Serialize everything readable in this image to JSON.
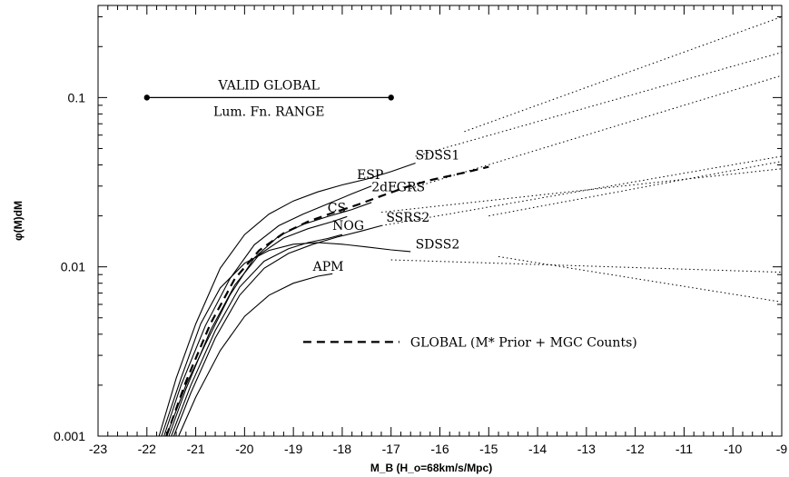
{
  "chart_data": {
    "type": "line",
    "xlabel": "M_B (H_o=68km/s/Mpc)",
    "ylabel": "φ(M)dM",
    "xlim": [
      -23,
      -9
    ],
    "ylim": [
      0.001,
      0.35
    ],
    "yscale": "log",
    "grid": false,
    "x_ticks": [
      "-23",
      "-22",
      "-21",
      "-20",
      "-19",
      "-18",
      "-17",
      "-16",
      "-15",
      "-14",
      "-13",
      "-12",
      "-11",
      "-10",
      "-9"
    ],
    "y_ticks": [
      "0.001",
      "0.01",
      "0.1"
    ],
    "valid_range": {
      "x": [
        -22,
        -17
      ],
      "y": 0.1,
      "label_top": "VALID GLOBAL",
      "label_bottom": "Lum. Fn. RANGE"
    },
    "legend_text": "GLOBAL (M* Prior + MGC Counts)",
    "series": [
      {
        "name": "SDSS1",
        "solid": [
          [
            -21.75,
            0.001
          ],
          [
            -21.4,
            0.0022
          ],
          [
            -21.0,
            0.0046
          ],
          [
            -20.5,
            0.0098
          ],
          [
            -20.0,
            0.0155
          ],
          [
            -19.5,
            0.0205
          ],
          [
            -19.0,
            0.0245
          ],
          [
            -18.5,
            0.0277
          ],
          [
            -18.0,
            0.0305
          ],
          [
            -17.5,
            0.033
          ],
          [
            -17.0,
            0.0365
          ],
          [
            -16.5,
            0.041
          ]
        ],
        "dotted": [
          [
            -15.5,
            0.063
          ],
          [
            -9,
            0.3
          ]
        ],
        "label_at": [
          -16.5,
          0.043
        ]
      },
      {
        "name": "ESP",
        "solid": [
          [
            -21.65,
            0.001
          ],
          [
            -21.3,
            0.002
          ],
          [
            -20.8,
            0.0045
          ],
          [
            -20.3,
            0.0085
          ],
          [
            -19.8,
            0.0135
          ],
          [
            -19.3,
            0.0175
          ],
          [
            -18.8,
            0.0205
          ],
          [
            -18.3,
            0.0235
          ],
          [
            -17.8,
            0.027
          ],
          [
            -17.4,
            0.03
          ]
        ],
        "dotted": [
          [
            -16.5,
            0.045
          ],
          [
            -9,
            0.185
          ]
        ],
        "label_at": [
          -17.7,
          0.033
        ]
      },
      {
        "name": "2dFGRS",
        "solid": [
          [
            -21.6,
            0.001
          ],
          [
            -21.2,
            0.002
          ],
          [
            -20.8,
            0.0035
          ],
          [
            -20.3,
            0.0068
          ],
          [
            -19.8,
            0.0113
          ],
          [
            -19.3,
            0.0152
          ],
          [
            -18.8,
            0.0178
          ],
          [
            -18.3,
            0.0198
          ],
          [
            -17.8,
            0.0218
          ],
          [
            -17.4,
            0.024
          ]
        ],
        "dotted": [
          [
            -16.6,
            0.029
          ],
          [
            -9,
            0.135
          ]
        ],
        "label_at": [
          -17.4,
          0.028
        ]
      },
      {
        "name": "CS",
        "solid": [
          [
            -21.55,
            0.001
          ],
          [
            -21.2,
            0.0019
          ],
          [
            -20.7,
            0.0042
          ],
          [
            -20.2,
            0.0078
          ],
          [
            -19.7,
            0.0118
          ],
          [
            -19.2,
            0.0148
          ],
          [
            -18.7,
            0.0168
          ],
          [
            -18.2,
            0.0185
          ],
          [
            -17.9,
            0.0198
          ]
        ],
        "dotted": [
          [
            -17.2,
            0.021
          ],
          [
            -9,
            0.038
          ]
        ],
        "label_at": [
          -18.3,
          0.021
        ]
      },
      {
        "name": "NOG",
        "solid": [
          [
            -21.5,
            0.001
          ],
          [
            -21.1,
            0.002
          ],
          [
            -20.6,
            0.0042
          ],
          [
            -20.1,
            0.0076
          ],
          [
            -19.6,
            0.0108
          ],
          [
            -19.1,
            0.0128
          ],
          [
            -18.7,
            0.0139
          ],
          [
            -18.3,
            0.0147
          ],
          [
            -18.0,
            0.0155
          ]
        ],
        "dotted": [
          [
            -17.2,
            0.0175
          ],
          [
            -9,
            0.045
          ]
        ],
        "label_at": [
          -18.2,
          0.0165
        ]
      },
      {
        "name": "SSRS2",
        "solid": [
          [
            -21.45,
            0.001
          ],
          [
            -21.1,
            0.0018
          ],
          [
            -20.6,
            0.0038
          ],
          [
            -20.1,
            0.0068
          ],
          [
            -19.6,
            0.0098
          ],
          [
            -19.1,
            0.012
          ],
          [
            -18.6,
            0.0136
          ],
          [
            -18.1,
            0.015
          ],
          [
            -17.6,
            0.0163
          ],
          [
            -17.2,
            0.0175
          ]
        ],
        "dotted": [
          [
            -15.0,
            0.02
          ],
          [
            -9,
            0.042
          ]
        ],
        "label_at": [
          -17.1,
          0.0185
        ]
      },
      {
        "name": "SDSS2",
        "solid": [
          [
            -21.7,
            0.001
          ],
          [
            -21.3,
            0.0022
          ],
          [
            -20.9,
            0.0046
          ],
          [
            -20.5,
            0.0075
          ],
          [
            -20.0,
            0.0105
          ],
          [
            -19.5,
            0.0125
          ],
          [
            -19.0,
            0.0136
          ],
          [
            -18.5,
            0.0139
          ],
          [
            -18.0,
            0.0136
          ],
          [
            -17.5,
            0.0131
          ],
          [
            -17.0,
            0.0126
          ],
          [
            -16.6,
            0.0123
          ]
        ],
        "dotted": [
          [
            -14.8,
            0.0115
          ],
          [
            -9,
            0.0062
          ]
        ],
        "label_at": [
          -16.5,
          0.0128
        ]
      },
      {
        "name": "APM",
        "solid": [
          [
            -21.35,
            0.001
          ],
          [
            -21.0,
            0.0017
          ],
          [
            -20.5,
            0.0032
          ],
          [
            -20.0,
            0.0051
          ],
          [
            -19.5,
            0.0068
          ],
          [
            -19.0,
            0.008
          ],
          [
            -18.5,
            0.0088
          ],
          [
            -18.2,
            0.0091
          ]
        ],
        "dotted": [
          [
            -17.0,
            0.011
          ],
          [
            -9,
            0.0093
          ]
        ],
        "label_at": [
          -18.6,
          0.0095
        ]
      },
      {
        "name": "GLOBAL (M* Prior + MGC Counts)",
        "dashed": true,
        "solid": [
          [
            -21.6,
            0.001
          ],
          [
            -21.2,
            0.0021
          ],
          [
            -20.7,
            0.0046
          ],
          [
            -20.2,
            0.0085
          ],
          [
            -19.7,
            0.0125
          ],
          [
            -19.2,
            0.0158
          ],
          [
            -18.7,
            0.0185
          ],
          [
            -18.2,
            0.0208
          ],
          [
            -17.7,
            0.0232
          ],
          [
            -17.2,
            0.0262
          ],
          [
            -16.7,
            0.0295
          ],
          [
            -16.2,
            0.0325
          ],
          [
            -15.5,
            0.036
          ],
          [
            -15.0,
            0.039
          ]
        ]
      }
    ]
  }
}
